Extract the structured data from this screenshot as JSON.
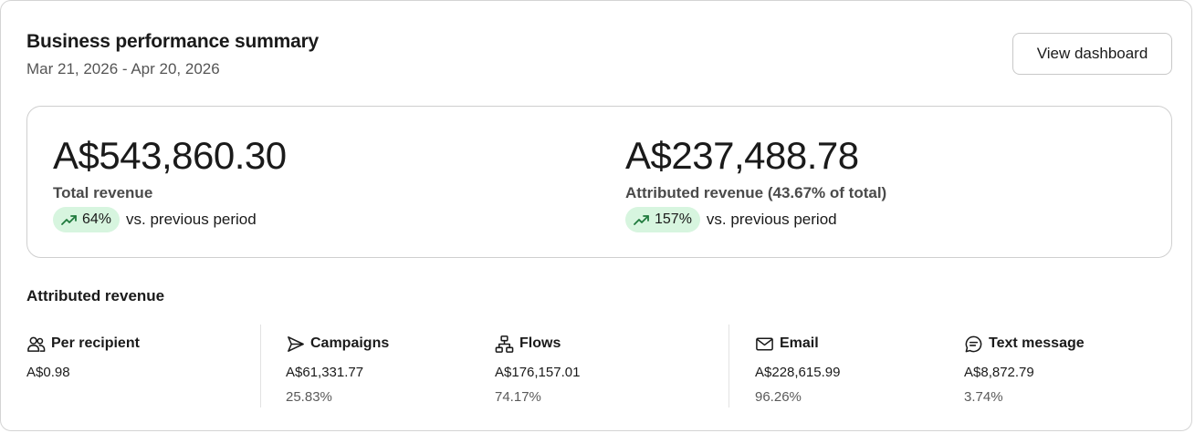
{
  "header": {
    "title": "Business performance summary",
    "date_range": "Mar 21, 2026 - Apr 20, 2026",
    "view_dashboard_label": "View dashboard"
  },
  "summary": {
    "total": {
      "value": "A$543,860.30",
      "label": "Total revenue",
      "change": "64%",
      "comparison": "vs. previous period",
      "trend": "up"
    },
    "attributed": {
      "value": "A$237,488.78",
      "label": "Attributed revenue (43.67% of total)",
      "change": "157%",
      "comparison": "vs. previous period",
      "trend": "up"
    }
  },
  "attributed_section": {
    "title": "Attributed revenue",
    "stats": [
      {
        "icon": "people-icon",
        "name": "Per recipient",
        "amount": "A$0.98",
        "percent": ""
      },
      {
        "icon": "send-icon",
        "name": "Campaigns",
        "amount": "A$61,331.77",
        "percent": "25.83%"
      },
      {
        "icon": "flow-icon",
        "name": "Flows",
        "amount": "A$176,157.01",
        "percent": "74.17%"
      },
      {
        "icon": "envelope-icon",
        "name": "Email",
        "amount": "A$228,615.99",
        "percent": "96.26%"
      },
      {
        "icon": "chat-bubble-icon",
        "name": "Text message",
        "amount": "A$8,872.79",
        "percent": "3.74%"
      }
    ]
  },
  "colors": {
    "trend_pill_bg": "#d7f5df",
    "trend_arrow": "#1f7a3d",
    "border": "#d4d4d4"
  }
}
